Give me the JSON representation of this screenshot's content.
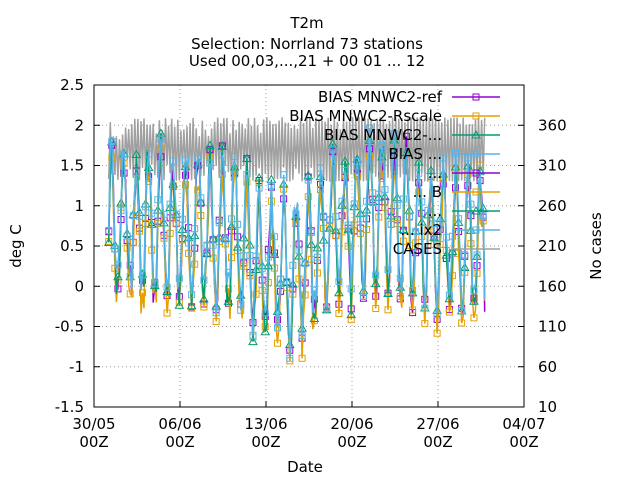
{
  "chart_data": {
    "type": "line",
    "title": "T2m",
    "subtitle_line1": "Selection: Norrland     73 stations",
    "subtitle_line2": "Used 00,03,...,21 + 00 01 ... 12",
    "xlabel": "Date",
    "ylabel": "deg C",
    "y2label": "No cases",
    "ylim": [
      -1.5,
      2.5
    ],
    "y2lim": [
      10,
      410
    ],
    "y_ticks": [
      "-1.5",
      "-1",
      "-0.5",
      "0",
      "0.5",
      "1",
      "1.5",
      "2",
      "2.5"
    ],
    "y2_ticks": [
      "10",
      "60",
      "110",
      "160",
      "210",
      "260",
      "310",
      "360"
    ],
    "x_range_days": [
      0,
      35
    ],
    "x_ticks": [
      {
        "day": 0,
        "date": "30/05",
        "hour": "00Z"
      },
      {
        "day": 7,
        "date": "06/06",
        "hour": "00Z"
      },
      {
        "day": 14,
        "date": "13/06",
        "hour": "00Z"
      },
      {
        "day": 21,
        "date": "20/06",
        "hour": "00Z"
      },
      {
        "day": 28,
        "date": "27/06",
        "hour": "00Z"
      },
      {
        "day": 35,
        "date": "04/07",
        "hour": "00Z"
      }
    ],
    "grid": true,
    "legend_placement": "top-right",
    "legend": [
      {
        "name": "BIAS MNWC2-ref",
        "color": "#9400d3",
        "marker": "square"
      },
      {
        "name": "BIAS MNWC2-Rscale",
        "color": "#e69f00",
        "marker": "square"
      },
      {
        "name": "BIAS MNWC2-...",
        "color": "#009e73",
        "marker": "triangle"
      },
      {
        "name": "BIAS ...",
        "color": "#56b4e9",
        "marker": "square"
      },
      {
        "name": "...",
        "color": "#9400d3",
        "marker": "square"
      },
      {
        "name": "... B",
        "color": "#e69f00",
        "marker": "square"
      },
      {
        "name": "... ",
        "color": "#009e73",
        "marker": "triangle"
      },
      {
        "name": "... ix2",
        "color": "#56b4e9",
        "marker": "square"
      },
      {
        "name": "CASES",
        "color": "#a0a0a0",
        "marker": "none"
      }
    ],
    "series": [
      {
        "name": "BIAS MNWC2-ref",
        "color": "#9400d3",
        "offset": 0.0
      },
      {
        "name": "BIAS MNWC2-Rscale",
        "color": "#e69f00",
        "offset": -0.1
      },
      {
        "name": "BIAS MNWC2-...",
        "color": "#009e73",
        "offset": 0.05
      },
      {
        "name": "BIAS ...",
        "color": "#56b4e9",
        "offset": 0.12
      }
    ],
    "cases_range": [
      290,
      370
    ],
    "data_start_day": 1.2,
    "data_end_day": 31.8
  }
}
